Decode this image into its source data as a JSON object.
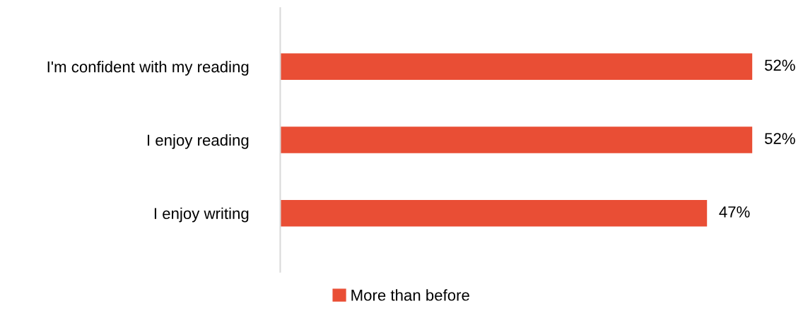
{
  "chart_data": {
    "type": "bar",
    "orientation": "horizontal",
    "categories": [
      "I'm confident with my reading",
      "I enjoy reading",
      "I enjoy writing"
    ],
    "series": [
      {
        "name": "More than before",
        "color": "#e94e35",
        "values": [
          52,
          52,
          47
        ],
        "value_labels": [
          "52%",
          "52%",
          "47%"
        ]
      }
    ],
    "tick_labels": "y",
    "grid": false,
    "legend": "bottom"
  }
}
